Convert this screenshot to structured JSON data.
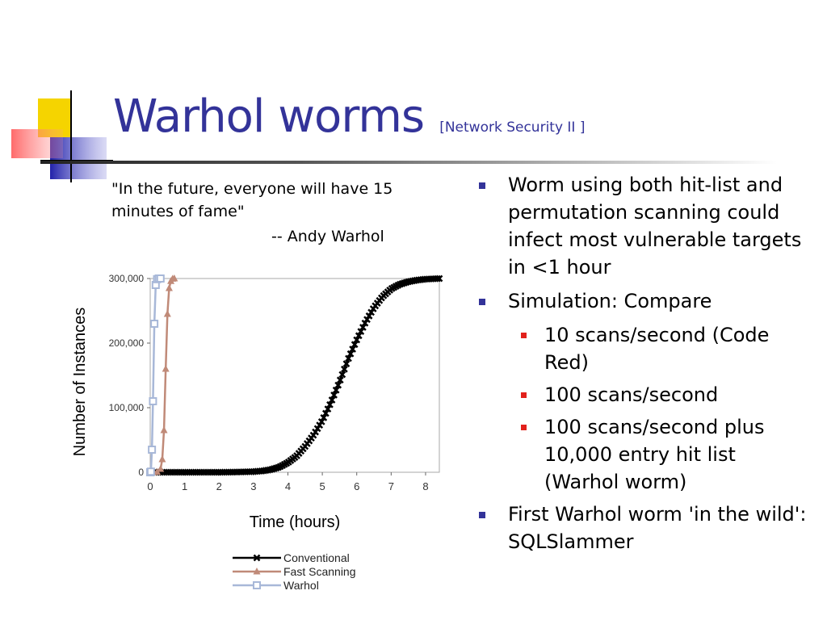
{
  "slide": {
    "title": "Warhol worms",
    "subtitle": "[Network Security II ]"
  },
  "quote": {
    "text": "\"In the future, everyone will have 15 minutes of fame\"",
    "attribution": "-- Andy Warhol"
  },
  "bullets": [
    {
      "text": "Worm using both hit-list and permutation scanning could infect most vulnerable targets in <1 hour",
      "sub": []
    },
    {
      "text": "Simulation: Compare",
      "sub": [
        "10 scans/second (Code Red)",
        "100 scans/second",
        "100 scans/second plus 10,000 entry hit list (Warhol worm)"
      ]
    },
    {
      "text": "First Warhol worm 'in the wild': SQLSlammer",
      "sub": []
    }
  ],
  "colors": {
    "title": "#333399",
    "bullet_l1": "#333399",
    "bullet_l2": "#e2211c"
  },
  "chart_data": {
    "type": "line",
    "xlabel": "Time (hours)",
    "ylabel": "Number of Instances",
    "xlim": [
      0,
      8.4
    ],
    "ylim": [
      0,
      300000
    ],
    "x_ticks": [
      "0",
      "1",
      "2",
      "3",
      "4",
      "5",
      "6",
      "7",
      "8"
    ],
    "y_ticks": [
      "0",
      "100,000",
      "200,000",
      "300,000"
    ],
    "legend_position": "bottom",
    "series": [
      {
        "name": "Conventional",
        "color": "#000000",
        "marker": "x",
        "x": [
          0,
          0.5,
          1,
          1.5,
          2,
          2.5,
          3,
          3.25,
          3.5,
          3.75,
          4,
          4.25,
          4.5,
          4.75,
          5,
          5.25,
          5.5,
          5.75,
          6,
          6.25,
          6.5,
          6.75,
          7,
          7.25,
          7.5,
          7.75,
          8,
          8.25,
          8.4
        ],
        "y": [
          0,
          0,
          0,
          0,
          0,
          300,
          1000,
          2000,
          4000,
          8000,
          15000,
          25000,
          40000,
          58000,
          80000,
          108000,
          140000,
          175000,
          205000,
          232000,
          255000,
          272000,
          284000,
          291000,
          295000,
          297500,
          299000,
          299600,
          300000
        ]
      },
      {
        "name": "Fast Scanning",
        "color": "#c08a78",
        "marker": "triangle",
        "x": [
          0,
          0.1,
          0.2,
          0.3,
          0.35,
          0.4,
          0.45,
          0.5,
          0.55,
          0.6,
          0.65,
          0.7
        ],
        "y": [
          0,
          0,
          500,
          5000,
          20000,
          65000,
          160000,
          245000,
          285000,
          296000,
          299500,
          300000
        ]
      },
      {
        "name": "Warhol",
        "color": "#a8b8d8",
        "marker": "square",
        "x": [
          0,
          0.02,
          0.05,
          0.08,
          0.12,
          0.16,
          0.2,
          0.25,
          0.3
        ],
        "y": [
          0,
          1000,
          35000,
          110000,
          230000,
          290000,
          299000,
          300000,
          300000
        ]
      }
    ]
  }
}
